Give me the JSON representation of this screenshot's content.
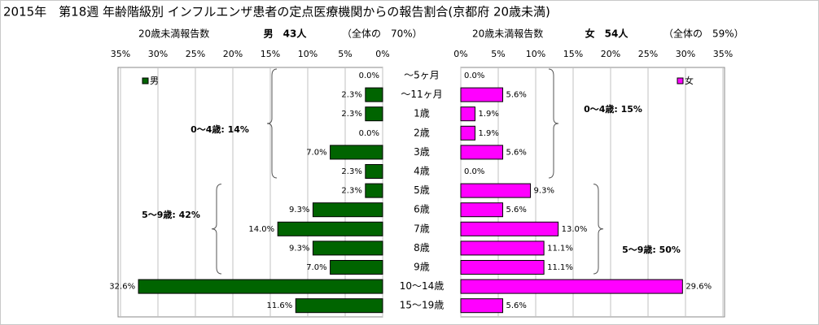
{
  "chart_data": {
    "type": "bar",
    "title": "2015年　第18週 年齢階級別 インフルエンザ患者の定点医療機関からの報告割合(京都府 20歳未満)",
    "categories": [
      "～5ヶ月",
      "～11ヶ月",
      "1歳",
      "2歳",
      "3歳",
      "4歳",
      "5歳",
      "6歳",
      "7歳",
      "8歳",
      "9歳",
      "10～14歳",
      "15～19歳"
    ],
    "grid": true,
    "series": [
      {
        "name": "男",
        "color": "#006400",
        "values": [
          0.0,
          2.3,
          2.3,
          0.0,
          7.0,
          2.3,
          2.3,
          9.3,
          14.0,
          9.3,
          7.0,
          32.6,
          11.6
        ],
        "value_labels": [
          "0.0%",
          "2.3%",
          "2.3%",
          "0.0%",
          "7.0%",
          "2.3%",
          "2.3%",
          "9.3%",
          "14.0%",
          "9.3%",
          "7.0%",
          "32.6%",
          "11.6%"
        ],
        "header": {
          "caption": "20歳未満報告数",
          "count": "男　43人",
          "share": "（全体の　70%）"
        },
        "xlim": [
          35,
          0
        ],
        "xticks": [
          {
            "value": 35,
            "label": "35%"
          },
          {
            "value": 30,
            "label": "30%"
          },
          {
            "value": 25,
            "label": "25%"
          },
          {
            "value": 20,
            "label": "20%"
          },
          {
            "value": 15,
            "label": "15%"
          },
          {
            "value": 10,
            "label": "10%"
          },
          {
            "value": 5,
            "label": "5%"
          },
          {
            "value": 0,
            "label": "0%"
          }
        ],
        "annotations": [
          "0～4歳: 14%",
          "5～9歳: 42%"
        ]
      },
      {
        "name": "女",
        "color": "#ff00ff",
        "values": [
          0.0,
          5.6,
          1.9,
          1.9,
          5.6,
          0.0,
          9.3,
          5.6,
          13.0,
          11.1,
          11.1,
          29.6,
          5.6
        ],
        "value_labels": [
          "0.0%",
          "5.6%",
          "1.9%",
          "1.9%",
          "5.6%",
          "0.0%",
          "9.3%",
          "5.6%",
          "13.0%",
          "11.1%",
          "11.1%",
          "29.6%",
          "5.6%"
        ],
        "header": {
          "caption": "20歳未満報告数",
          "count": "女　54人",
          "share": "（全体の　59%）"
        },
        "xlim": [
          0,
          35
        ],
        "xticks": [
          {
            "value": 0,
            "label": "0%"
          },
          {
            "value": 5,
            "label": "5%"
          },
          {
            "value": 10,
            "label": "10%"
          },
          {
            "value": 15,
            "label": "15%"
          },
          {
            "value": 20,
            "label": "20%"
          },
          {
            "value": 25,
            "label": "25%"
          },
          {
            "value": 30,
            "label": "30%"
          },
          {
            "value": 35,
            "label": "35%"
          }
        ],
        "annotations": [
          "0～4歳: 15%",
          "5～9歳: 50%"
        ]
      }
    ]
  }
}
